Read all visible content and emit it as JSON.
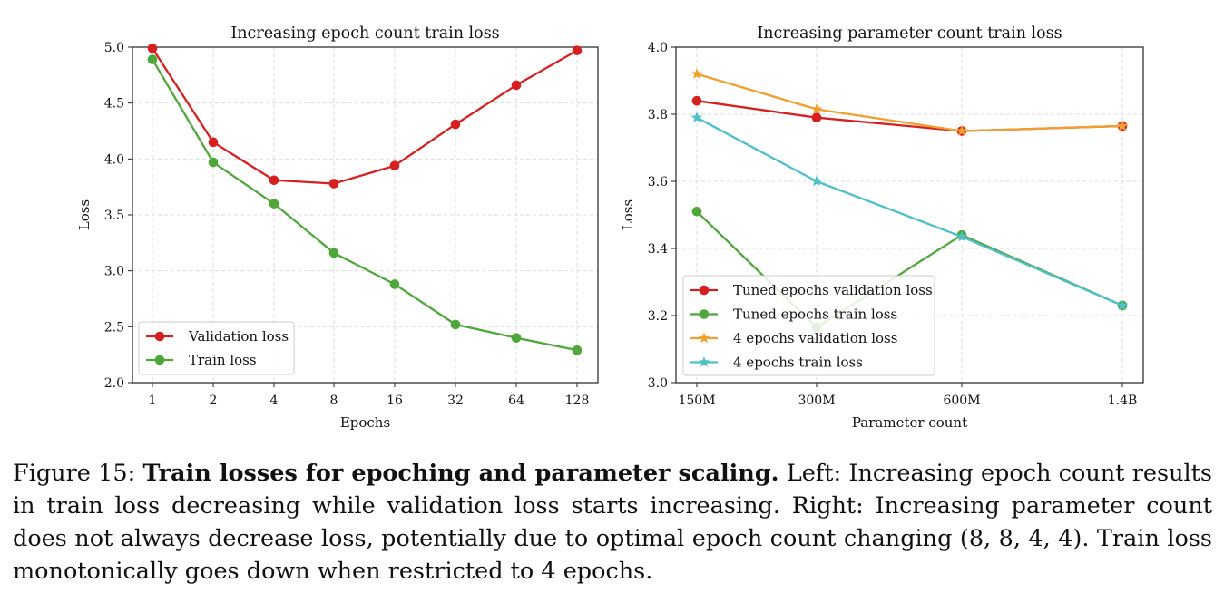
{
  "chart_data": [
    {
      "type": "line",
      "title": "Increasing epoch count train loss",
      "xlabel": "Epochs",
      "ylabel": "Loss",
      "categories": [
        "1",
        "2",
        "4",
        "8",
        "16",
        "32",
        "64",
        "128"
      ],
      "ylim": [
        2.0,
        5.0
      ],
      "yticks": [
        "2.0",
        "2.5",
        "3.0",
        "3.5",
        "4.0",
        "4.5",
        "5.0"
      ],
      "grid": true,
      "legend_position": "lower-left",
      "series": [
        {
          "name": "Validation loss",
          "color": "#d62020",
          "marker": "circle",
          "values": [
            4.99,
            4.15,
            3.81,
            3.78,
            3.94,
            4.31,
            4.66,
            4.97
          ]
        },
        {
          "name": "Train loss",
          "color": "#4fa63a",
          "marker": "circle",
          "values": [
            4.89,
            3.97,
            3.6,
            3.16,
            2.88,
            2.52,
            2.4,
            2.29
          ]
        }
      ]
    },
    {
      "type": "line",
      "title": "Increasing parameter count train loss",
      "xlabel": "Parameter count",
      "ylabel": "Loss",
      "categories": [
        "150M",
        "300M",
        "600M",
        "1.4B"
      ],
      "ylim": [
        3.0,
        4.0
      ],
      "yticks": [
        "3.0",
        "3.2",
        "3.4",
        "3.6",
        "3.8",
        "4.0"
      ],
      "grid": true,
      "legend_position": "lower-left",
      "series": [
        {
          "name": "Tuned epochs validation loss",
          "color": "#d62020",
          "marker": "circle",
          "values": [
            3.84,
            3.79,
            3.75,
            3.765
          ]
        },
        {
          "name": "Tuned epochs train loss",
          "color": "#4fa63a",
          "marker": "circle",
          "values": [
            3.51,
            3.165,
            3.44,
            3.23
          ]
        },
        {
          "name": "4 epochs validation loss",
          "color": "#f0a030",
          "marker": "star",
          "values": [
            3.92,
            3.815,
            3.75,
            3.765
          ]
        },
        {
          "name": "4 epochs train loss",
          "color": "#4fbfc8",
          "marker": "star",
          "values": [
            3.79,
            3.6,
            3.435,
            3.23
          ]
        }
      ]
    }
  ],
  "caption": {
    "label": "Figure 15:",
    "bold": "Train losses for epoching and parameter scaling.",
    "text": "Left: Increasing epoch count results in train loss decreasing while validation loss starts increasing. Right: Increasing parameter count does not always decrease loss, potentially due to optimal epoch count changing (8, 8, 4, 4). Train loss monotonically goes down when restricted to 4 epochs."
  }
}
